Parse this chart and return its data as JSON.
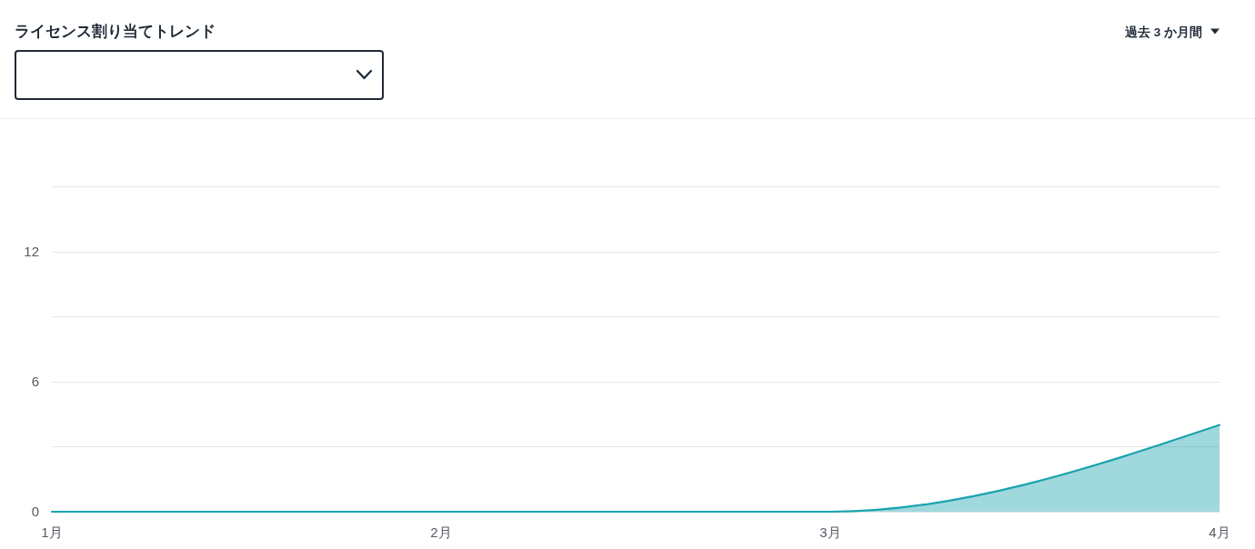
{
  "chart_data": {
    "type": "area",
    "title": "ライセンス割り当てトレンド",
    "annotations": [
      "過去 3 か月間"
    ],
    "categories": [
      "1月",
      "2月",
      "3月",
      "4月"
    ],
    "values": [
      0,
      0,
      0,
      4
    ],
    "color": "#1ba3ae",
    "ylim": [
      0,
      15
    ],
    "yticks": [
      0,
      {
        "value": 3,
        "label": null
      },
      6,
      {
        "value": 9,
        "label": null
      },
      12,
      {
        "value": 15,
        "label": null
      }
    ],
    "grid": "y"
  }
}
